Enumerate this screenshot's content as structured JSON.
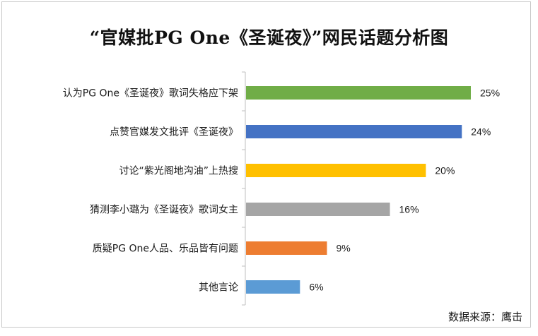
{
  "chart_data": {
    "type": "bar",
    "orientation": "horizontal",
    "title": "“官媒批PG One《圣诞夜》”网民话题分析图",
    "categories": [
      "认为PG One《圣诞夜》歌词失格应下架",
      "点赞官媒发文批评《圣诞夜》",
      "讨论“紫光阁地沟油”上热搜",
      "猜测李小璐为《圣诞夜》歌词女主",
      "质疑PG One人品、乐品皆有问题",
      "其他言论"
    ],
    "values": [
      25,
      24,
      20,
      16,
      9,
      6
    ],
    "value_labels": [
      "25%",
      "24%",
      "20%",
      "16%",
      "9%",
      "6%"
    ],
    "colors": [
      "#70ad47",
      "#4472c4",
      "#ffc000",
      "#a5a5a5",
      "#ed7d31",
      "#5b9bd5"
    ],
    "xlim": [
      0,
      25
    ],
    "grid": false,
    "legend": "none"
  },
  "source": "数据来源：鹰击"
}
